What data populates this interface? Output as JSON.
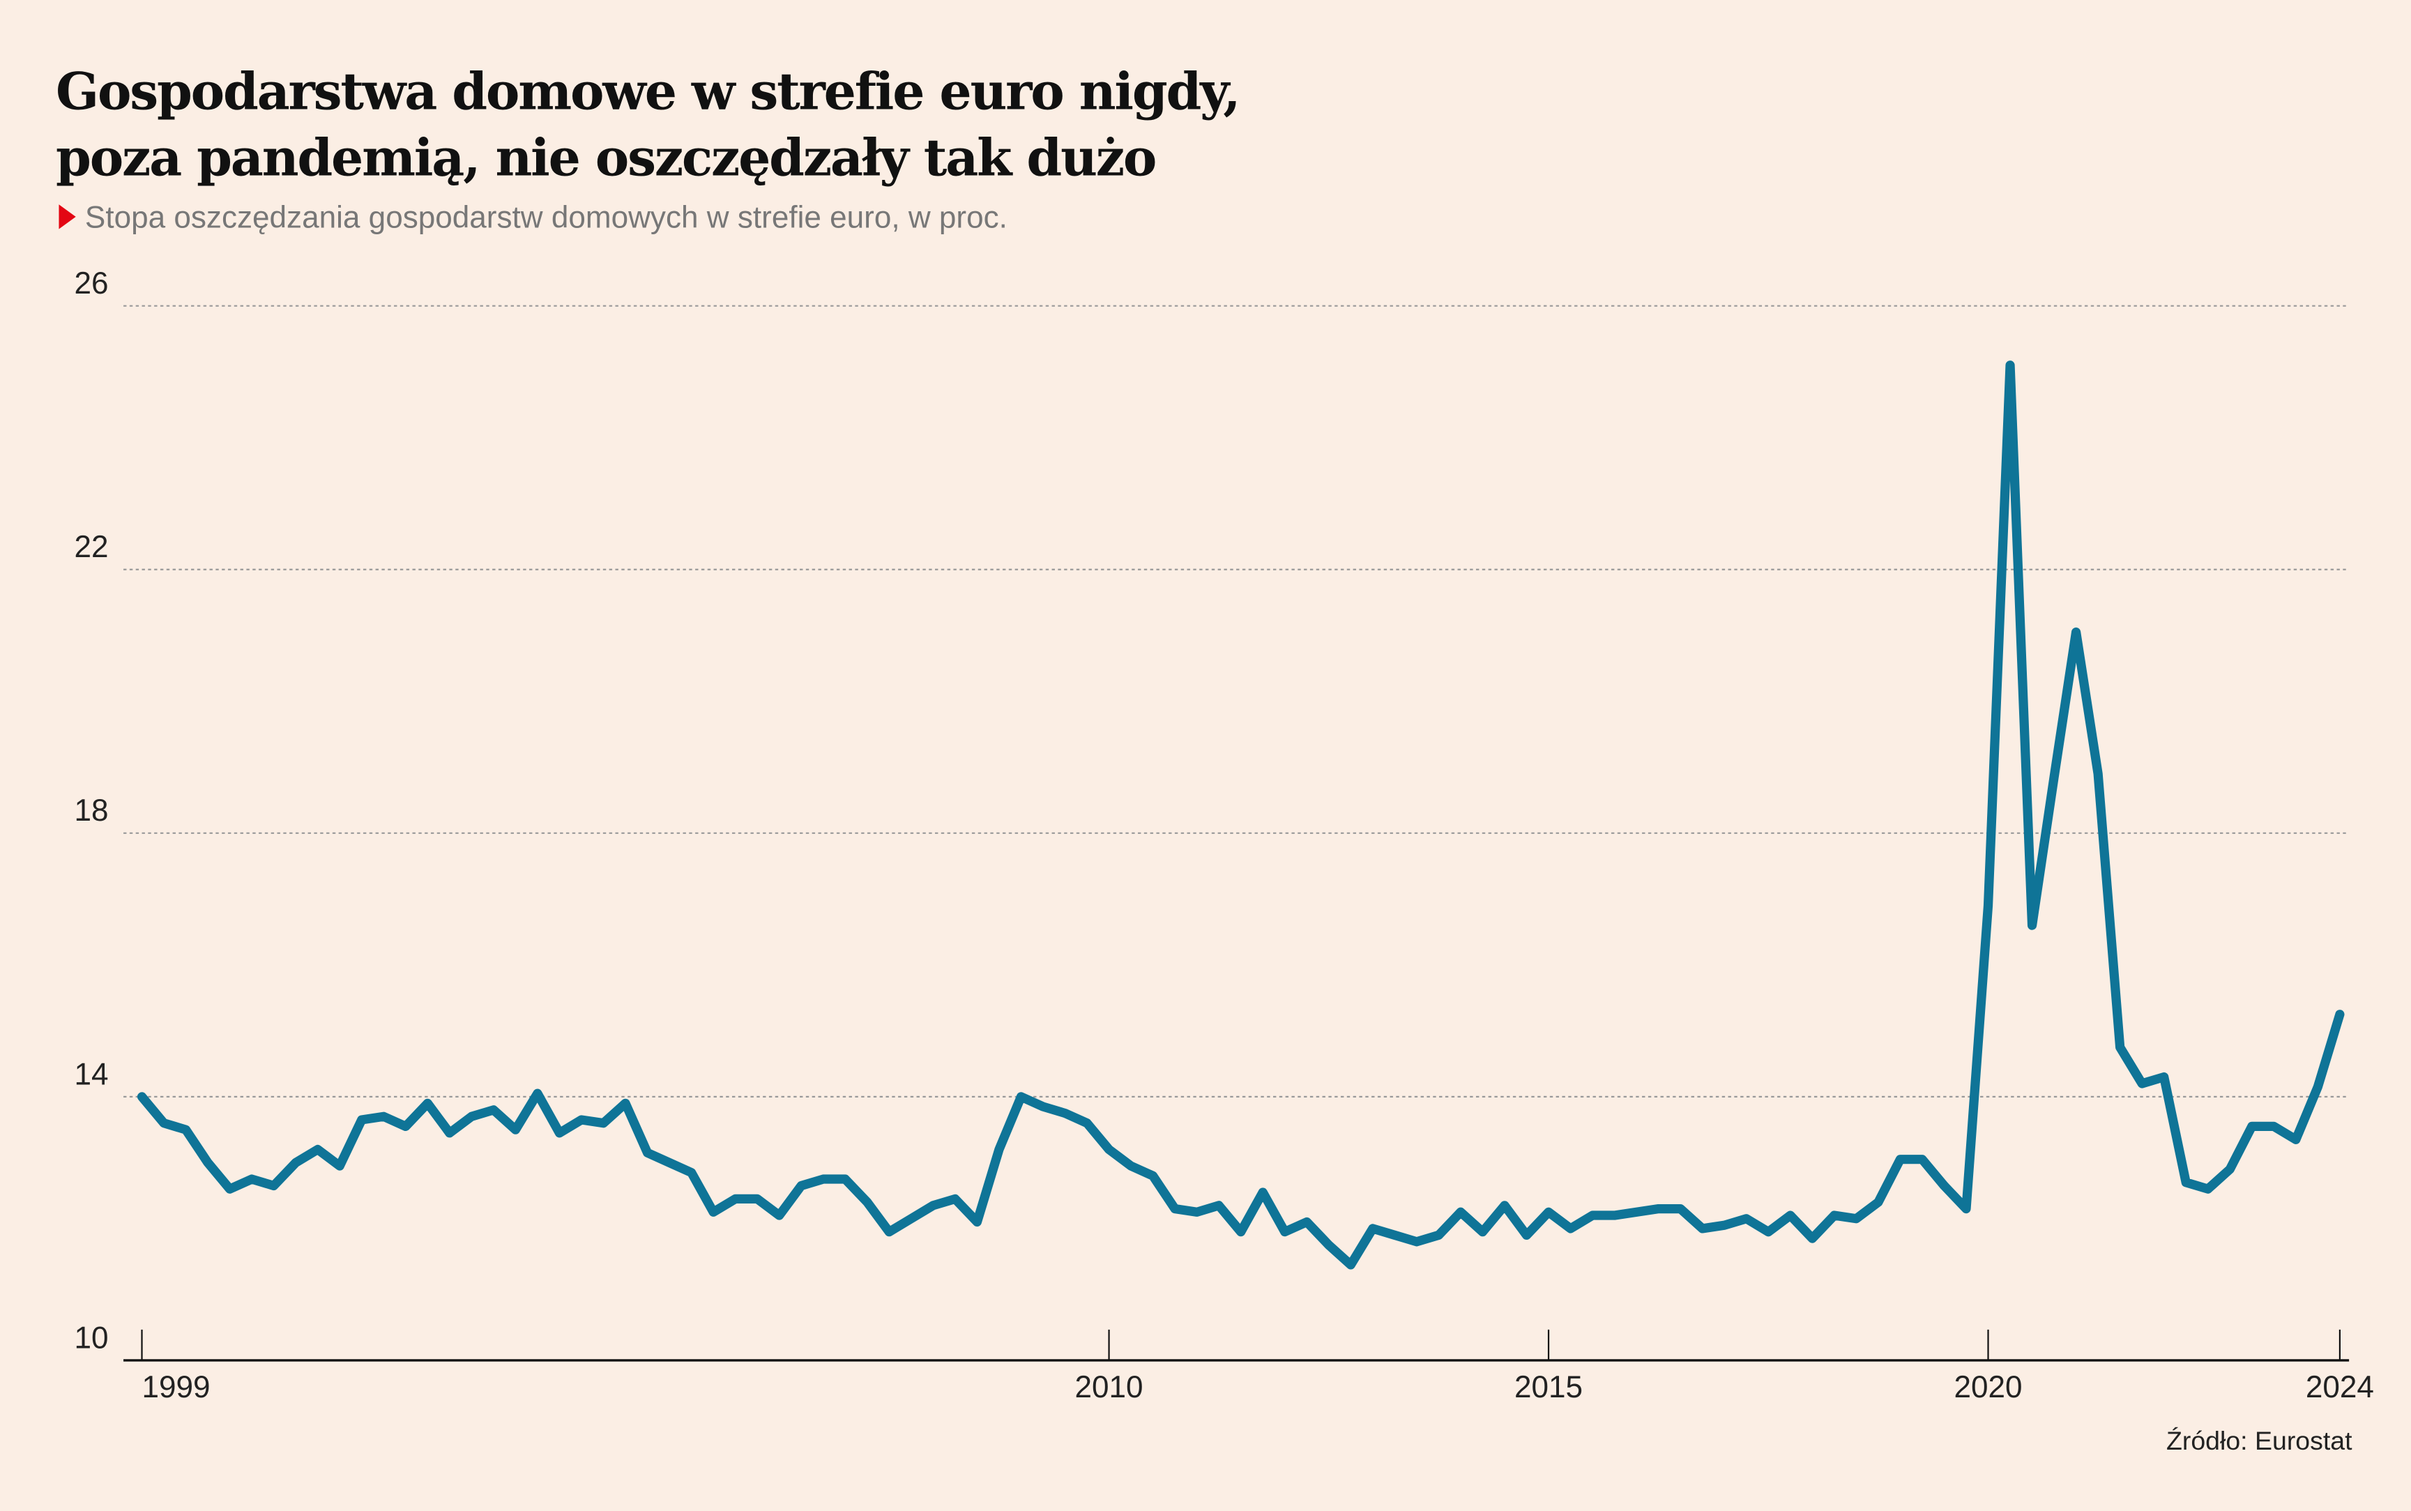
{
  "chart_data": {
    "type": "line",
    "title": [
      "Gospodarstwa domowe w strefie euro nigdy,",
      "poza pandemią, nie oszczędzały tak dużo"
    ],
    "subtitle": "Stopa oszczędzania gospodarstw domowych w strefie euro, w proc.",
    "source": "Źródło: Eurostat",
    "x": [
      1999,
      1999.25,
      1999.5,
      1999.75,
      2000,
      2000.25,
      2000.5,
      2000.75,
      2001,
      2001.25,
      2001.5,
      2001.75,
      2002,
      2002.25,
      2002.5,
      2002.75,
      2003,
      2003.25,
      2003.5,
      2003.75,
      2004,
      2004.25,
      2004.5,
      2004.75,
      2005,
      2005.25,
      2005.5,
      2005.75,
      2006,
      2006.25,
      2006.5,
      2006.75,
      2007,
      2007.25,
      2007.5,
      2007.75,
      2008,
      2008.25,
      2008.5,
      2008.75,
      2009,
      2009.25,
      2009.5,
      2009.75,
      2010,
      2010.25,
      2010.5,
      2010.75,
      2011,
      2011.25,
      2011.5,
      2011.75,
      2012,
      2012.25,
      2012.5,
      2012.75,
      2013,
      2013.25,
      2013.5,
      2013.75,
      2014,
      2014.25,
      2014.5,
      2014.75,
      2015,
      2015.25,
      2015.5,
      2015.75,
      2016,
      2016.25,
      2016.5,
      2016.75,
      2017,
      2017.25,
      2017.5,
      2017.75,
      2018,
      2018.25,
      2018.5,
      2018.75,
      2019,
      2019.25,
      2019.5,
      2019.75,
      2020,
      2020.25,
      2020.5,
      2020.75,
      2021,
      2021.25,
      2021.5,
      2021.75,
      2022,
      2022.25,
      2022.5,
      2022.75,
      2023,
      2023.25,
      2023.5,
      2023.75,
      2024
    ],
    "series": [
      {
        "name": "Stopa oszczędzania",
        "color": "#0f7497",
        "values": [
          14.0,
          13.6,
          13.5,
          13.0,
          12.6,
          12.75,
          12.65,
          13.0,
          13.2,
          12.95,
          13.65,
          13.7,
          13.55,
          13.9,
          13.45,
          13.7,
          13.8,
          13.5,
          14.05,
          13.45,
          13.65,
          13.6,
          13.9,
          13.15,
          13.0,
          12.85,
          12.25,
          12.45,
          12.45,
          12.2,
          12.65,
          12.75,
          12.75,
          12.4,
          11.95,
          12.15,
          12.35,
          12.45,
          12.1,
          13.2,
          14.0,
          13.85,
          13.75,
          13.6,
          13.2,
          12.95,
          12.8,
          12.3,
          12.25,
          12.35,
          11.95,
          12.55,
          11.95,
          12.1,
          11.75,
          11.45,
          12.0,
          11.9,
          11.8,
          11.9,
          12.25,
          11.95,
          12.35,
          11.9,
          12.25,
          12.0,
          12.2,
          12.2,
          12.25,
          12.3,
          12.3,
          12.0,
          12.05,
          12.15,
          11.95,
          12.2,
          11.85,
          12.2,
          12.15,
          12.4,
          13.05,
          13.05,
          12.65,
          12.3,
          16.9,
          25.1,
          16.6,
          18.85,
          21.05,
          18.9,
          14.75,
          14.2,
          14.3,
          12.7,
          12.6,
          12.9,
          13.55,
          13.55,
          13.35,
          14.15,
          15.25
        ]
      }
    ],
    "xlim": [
      1999,
      2024
    ],
    "xticks": [
      1999,
      2010,
      2015,
      2020,
      2024
    ],
    "ylim": [
      10,
      26
    ],
    "yticks": [
      10,
      14,
      18,
      22,
      26
    ],
    "grid": true
  }
}
